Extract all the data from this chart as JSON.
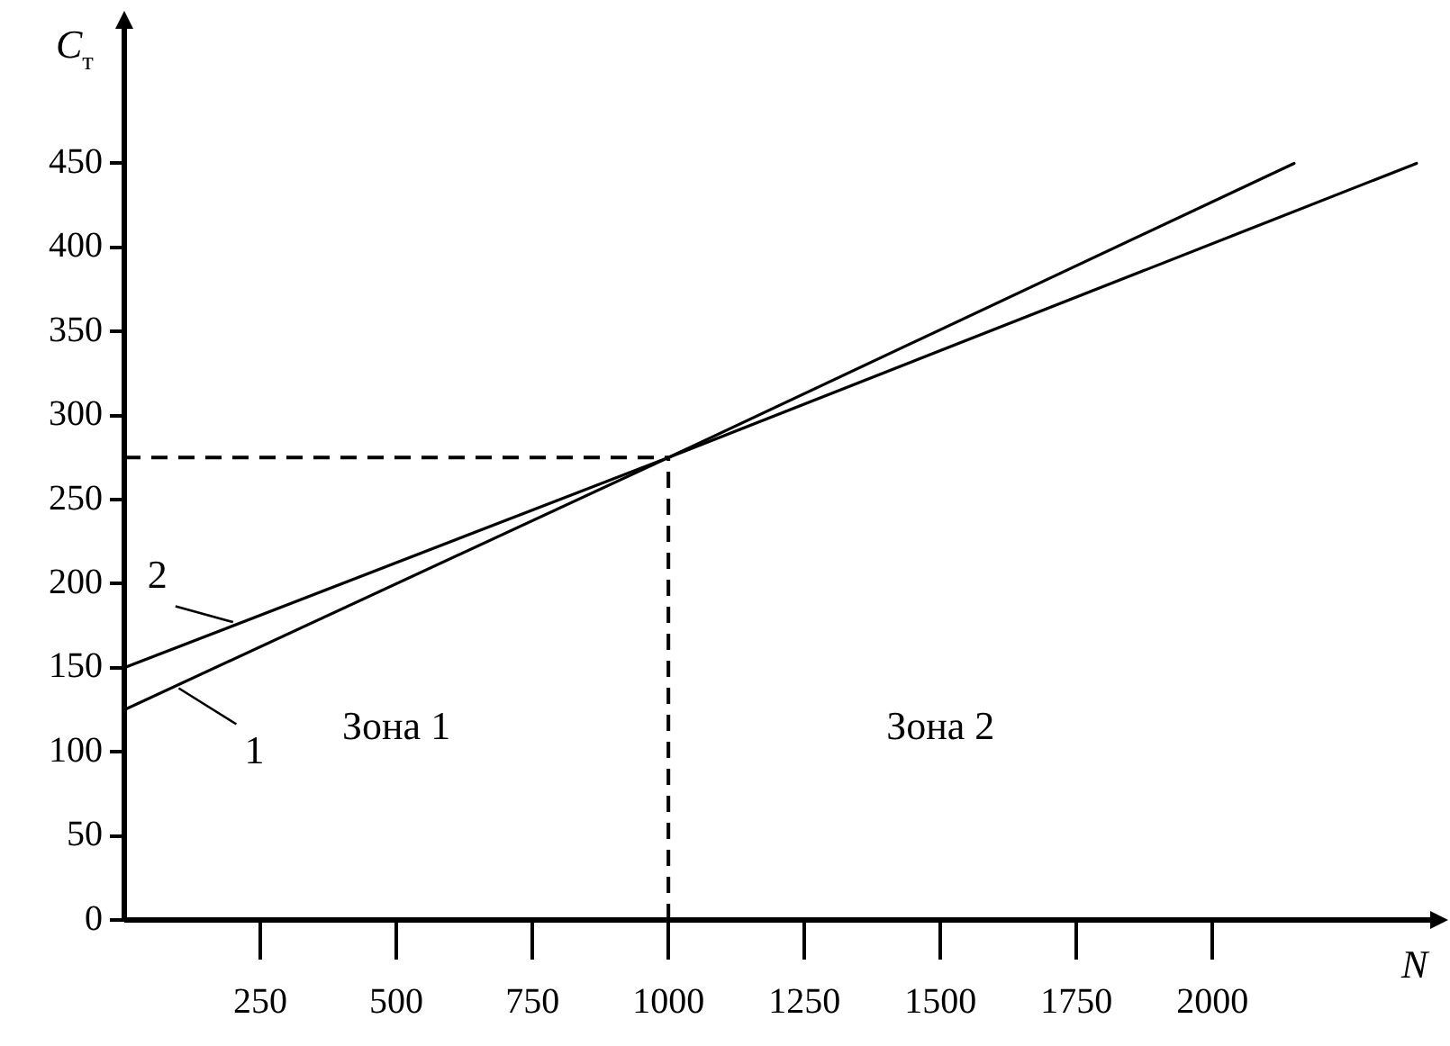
{
  "chart_data": {
    "type": "line",
    "xlabel": "N",
    "ylabel": "C$_{т}$",
    "series": [
      {
        "name": "1",
        "color": "#000000",
        "x": [
          0,
          1000,
          2150
        ],
        "values": [
          125,
          275,
          450
        ]
      },
      {
        "name": "2",
        "color": "#000000",
        "x": [
          0,
          1000,
          2375
        ],
        "values": [
          150,
          275,
          450
        ]
      }
    ],
    "xlim": [
      0,
      2400
    ],
    "ylim": [
      0,
      530
    ],
    "xticks": [
      250,
      500,
      750,
      1000,
      1250,
      1500,
      1750,
      2000
    ],
    "yticks": [
      0,
      50,
      100,
      150,
      200,
      250,
      300,
      350,
      400,
      450
    ],
    "ref_lines": [
      {
        "axis": "y",
        "value": 275,
        "line_style": "dashed"
      },
      {
        "axis": "x",
        "value": 1000,
        "line_style": "dashed"
      }
    ],
    "annotations": [
      "Зона 1",
      "Зона 2"
    ],
    "grid": false,
    "legend": "left",
    "marker": "none",
    "line_style": "solid"
  }
}
